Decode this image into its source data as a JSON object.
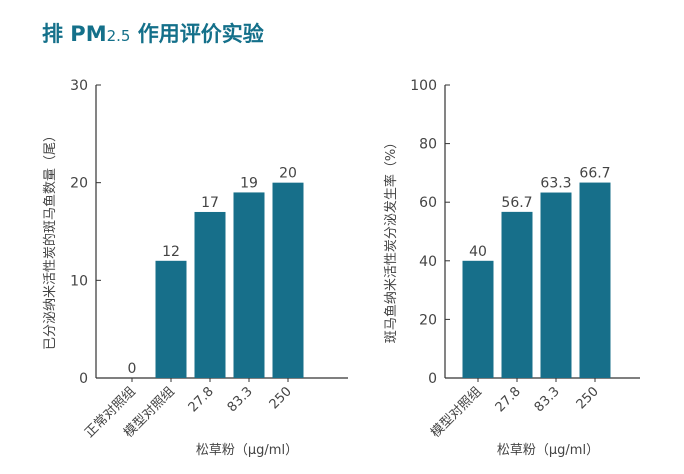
{
  "title": {
    "prefix": "排 PM",
    "subscript": "2.5",
    "suffix": " 作用评价实验"
  },
  "colors": {
    "bar": "#176f8a",
    "axis": "#333333",
    "text": "#444444",
    "title": "#14708a"
  },
  "chart_data": [
    {
      "type": "bar",
      "categories": [
        "正常对照组",
        "模型对照组",
        "27.8",
        "83.3",
        "250"
      ],
      "values": [
        0,
        12,
        17,
        19,
        20
      ],
      "data_labels": [
        "0",
        "12",
        "17",
        "19",
        "20"
      ],
      "ylabel": "已分泌纳米活性炭的斑马鱼数量（尾）",
      "xlabel": "松草粉（μg/ml）",
      "ylim": [
        0,
        30
      ],
      "yticks": [
        0,
        10,
        20,
        30
      ],
      "grid": false,
      "legend": "none"
    },
    {
      "type": "bar",
      "categories": [
        "模型对照组",
        "27.8",
        "83.3",
        "250"
      ],
      "values": [
        40,
        56.7,
        63.3,
        66.7
      ],
      "data_labels": [
        "40",
        "56.7",
        "63.3",
        "66.7"
      ],
      "ylabel": "斑马鱼纳米活性炭分泌发生率（%）",
      "xlabel": "松草粉（μg/ml）",
      "ylim": [
        0,
        100
      ],
      "yticks": [
        0,
        20,
        40,
        60,
        80,
        100
      ],
      "grid": false,
      "legend": "none"
    }
  ]
}
